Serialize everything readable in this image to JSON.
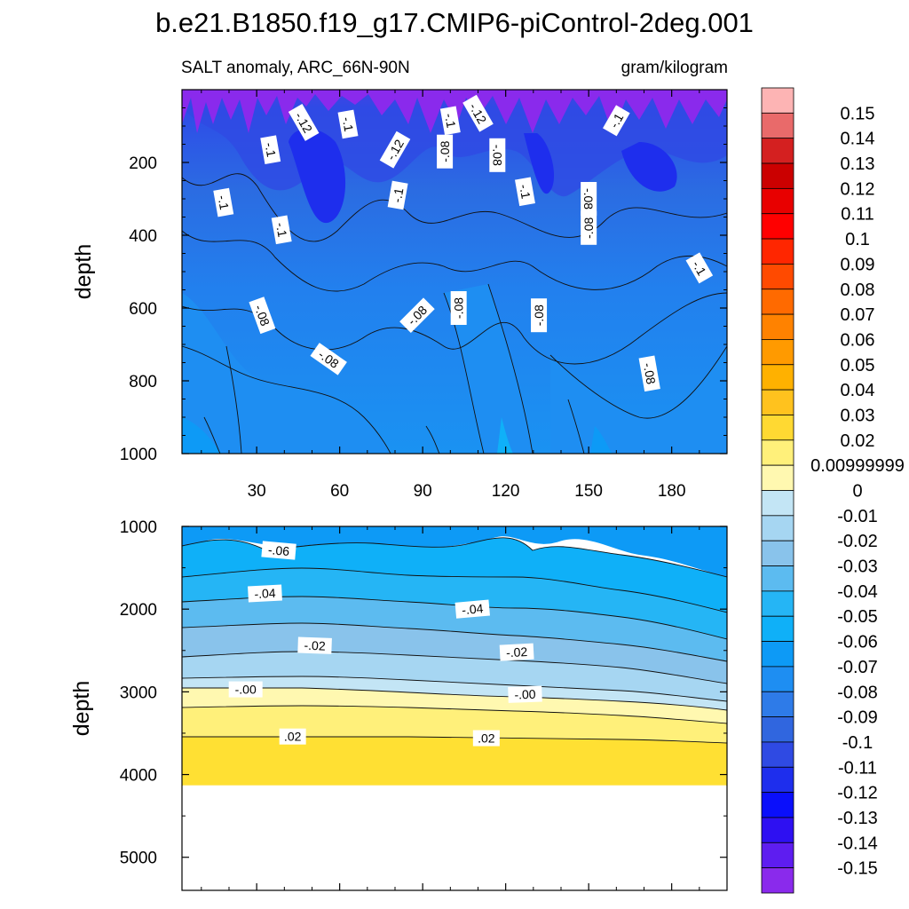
{
  "title": "b.e21.B1850.f19_g17.CMIP6-piControl-2deg.001",
  "chart_data": {
    "type": "contour",
    "variable_label": "SALT anomaly, ARC_66N-90N",
    "units": "gram/kilogram",
    "xlabel": "",
    "x_ticks": [
      30,
      60,
      90,
      120,
      150,
      180
    ],
    "xlim": [
      3,
      200
    ],
    "upper_panel": {
      "ylabel": "depth",
      "ylim": [
        0,
        1000
      ],
      "y_ticks": [
        200,
        400,
        600,
        800,
        1000
      ],
      "contour_labels": [
        {
          "text": "-.1",
          "x": 35,
          "y": 165,
          "angle": 80
        },
        {
          "text": "-.1",
          "x": 63,
          "y": 95,
          "angle": 80
        },
        {
          "text": "-.1",
          "x": 100,
          "y": 85,
          "angle": 80
        },
        {
          "text": "-.12",
          "x": 110,
          "y": 65,
          "angle": 60
        },
        {
          "text": "-.1",
          "x": 160,
          "y": 85,
          "angle": -60
        },
        {
          "text": "-.12",
          "x": 47,
          "y": 90,
          "angle": 60
        },
        {
          "text": "-.12",
          "x": 80,
          "y": 165,
          "angle": -60
        },
        {
          "text": "-.08",
          "x": 98,
          "y": 170,
          "angle": -90
        },
        {
          "text": "-.08",
          "x": 117,
          "y": 180,
          "angle": 90
        },
        {
          "text": "-.1",
          "x": 127,
          "y": 280,
          "angle": 80
        },
        {
          "text": "-.1",
          "x": 18,
          "y": 310,
          "angle": 80
        },
        {
          "text": "-.1",
          "x": 39,
          "y": 385,
          "angle": 80
        },
        {
          "text": "-.1",
          "x": 81,
          "y": 290,
          "angle": -80
        },
        {
          "text": "-.08",
          "x": 150,
          "y": 300,
          "angle": 90
        },
        {
          "text": "-.08",
          "x": 150,
          "y": 380,
          "angle": -90
        },
        {
          "text": "-.1",
          "x": 190,
          "y": 490,
          "angle": 60
        },
        {
          "text": "-.08",
          "x": 32,
          "y": 620,
          "angle": 70
        },
        {
          "text": "-.08",
          "x": 103,
          "y": 600,
          "angle": -90
        },
        {
          "text": "-.08",
          "x": 88,
          "y": 620,
          "angle": -45
        },
        {
          "text": "-.08",
          "x": 132,
          "y": 620,
          "angle": -90
        },
        {
          "text": "-.08",
          "x": 56,
          "y": 740,
          "angle": 35
        },
        {
          "text": "-.08",
          "x": 172,
          "y": 780,
          "angle": 80
        }
      ]
    },
    "lower_panel": {
      "ylabel": "depth",
      "ylim": [
        1000,
        5400
      ],
      "y_ticks": [
        1000,
        2000,
        3000,
        4000,
        5000
      ],
      "bottom_of_data": 4130,
      "contour_labels": [
        {
          "text": "-.06",
          "x": 38,
          "y": 1290,
          "angle": 5
        },
        {
          "text": "-.04",
          "x": 33,
          "y": 1810,
          "angle": -3
        },
        {
          "text": "-.04",
          "x": 108,
          "y": 2000,
          "angle": -5
        },
        {
          "text": "-.02",
          "x": 51,
          "y": 2440,
          "angle": 2
        },
        {
          "text": "-.02",
          "x": 124,
          "y": 2520,
          "angle": -3
        },
        {
          "text": "-.00",
          "x": 26,
          "y": 2970,
          "angle": 0
        },
        {
          "text": "-.00",
          "x": 127,
          "y": 3030,
          "angle": -2
        },
        {
          "text": ".02",
          "x": 43,
          "y": 3540,
          "angle": 0
        },
        {
          "text": ".02",
          "x": 113,
          "y": 3560,
          "angle": 0
        }
      ]
    },
    "colorbar": {
      "labels": [
        "0.15",
        "0.14",
        "0.13",
        "0.12",
        "0.11",
        "0.1",
        "0.09",
        "0.08",
        "0.07",
        "0.06",
        "0.05",
        "0.04",
        "0.03",
        "0.02",
        "0.00999999",
        "0",
        "-0.01",
        "-0.02",
        "-0.03",
        "-0.04",
        "-0.05",
        "-0.06",
        "-0.07",
        "-0.08",
        "-0.09",
        "-0.1",
        "-0.11",
        "-0.12",
        "-0.13",
        "-0.14",
        "-0.15"
      ],
      "colors": [
        "#fdb4b4",
        "#e96a6a",
        "#d42020",
        "#cb0000",
        "#e80000",
        "#ff0000",
        "#ff2600",
        "#ff4a00",
        "#ff6a00",
        "#ff8200",
        "#ff9a00",
        "#ffb100",
        "#ffc21e",
        "#ffd932",
        "#fff07a",
        "#fff8b0",
        "#c3e5f5",
        "#a6d6f2",
        "#89c3eb",
        "#5cbbf0",
        "#25b5f5",
        "#0fb0f8",
        "#0d9af6",
        "#1e8ef2",
        "#2e7be8",
        "#3066df",
        "#2f4ae3",
        "#1e2eed",
        "#0a0ffb",
        "#2e10f2",
        "#5e1df0",
        "#8a2aec"
      ]
    }
  }
}
